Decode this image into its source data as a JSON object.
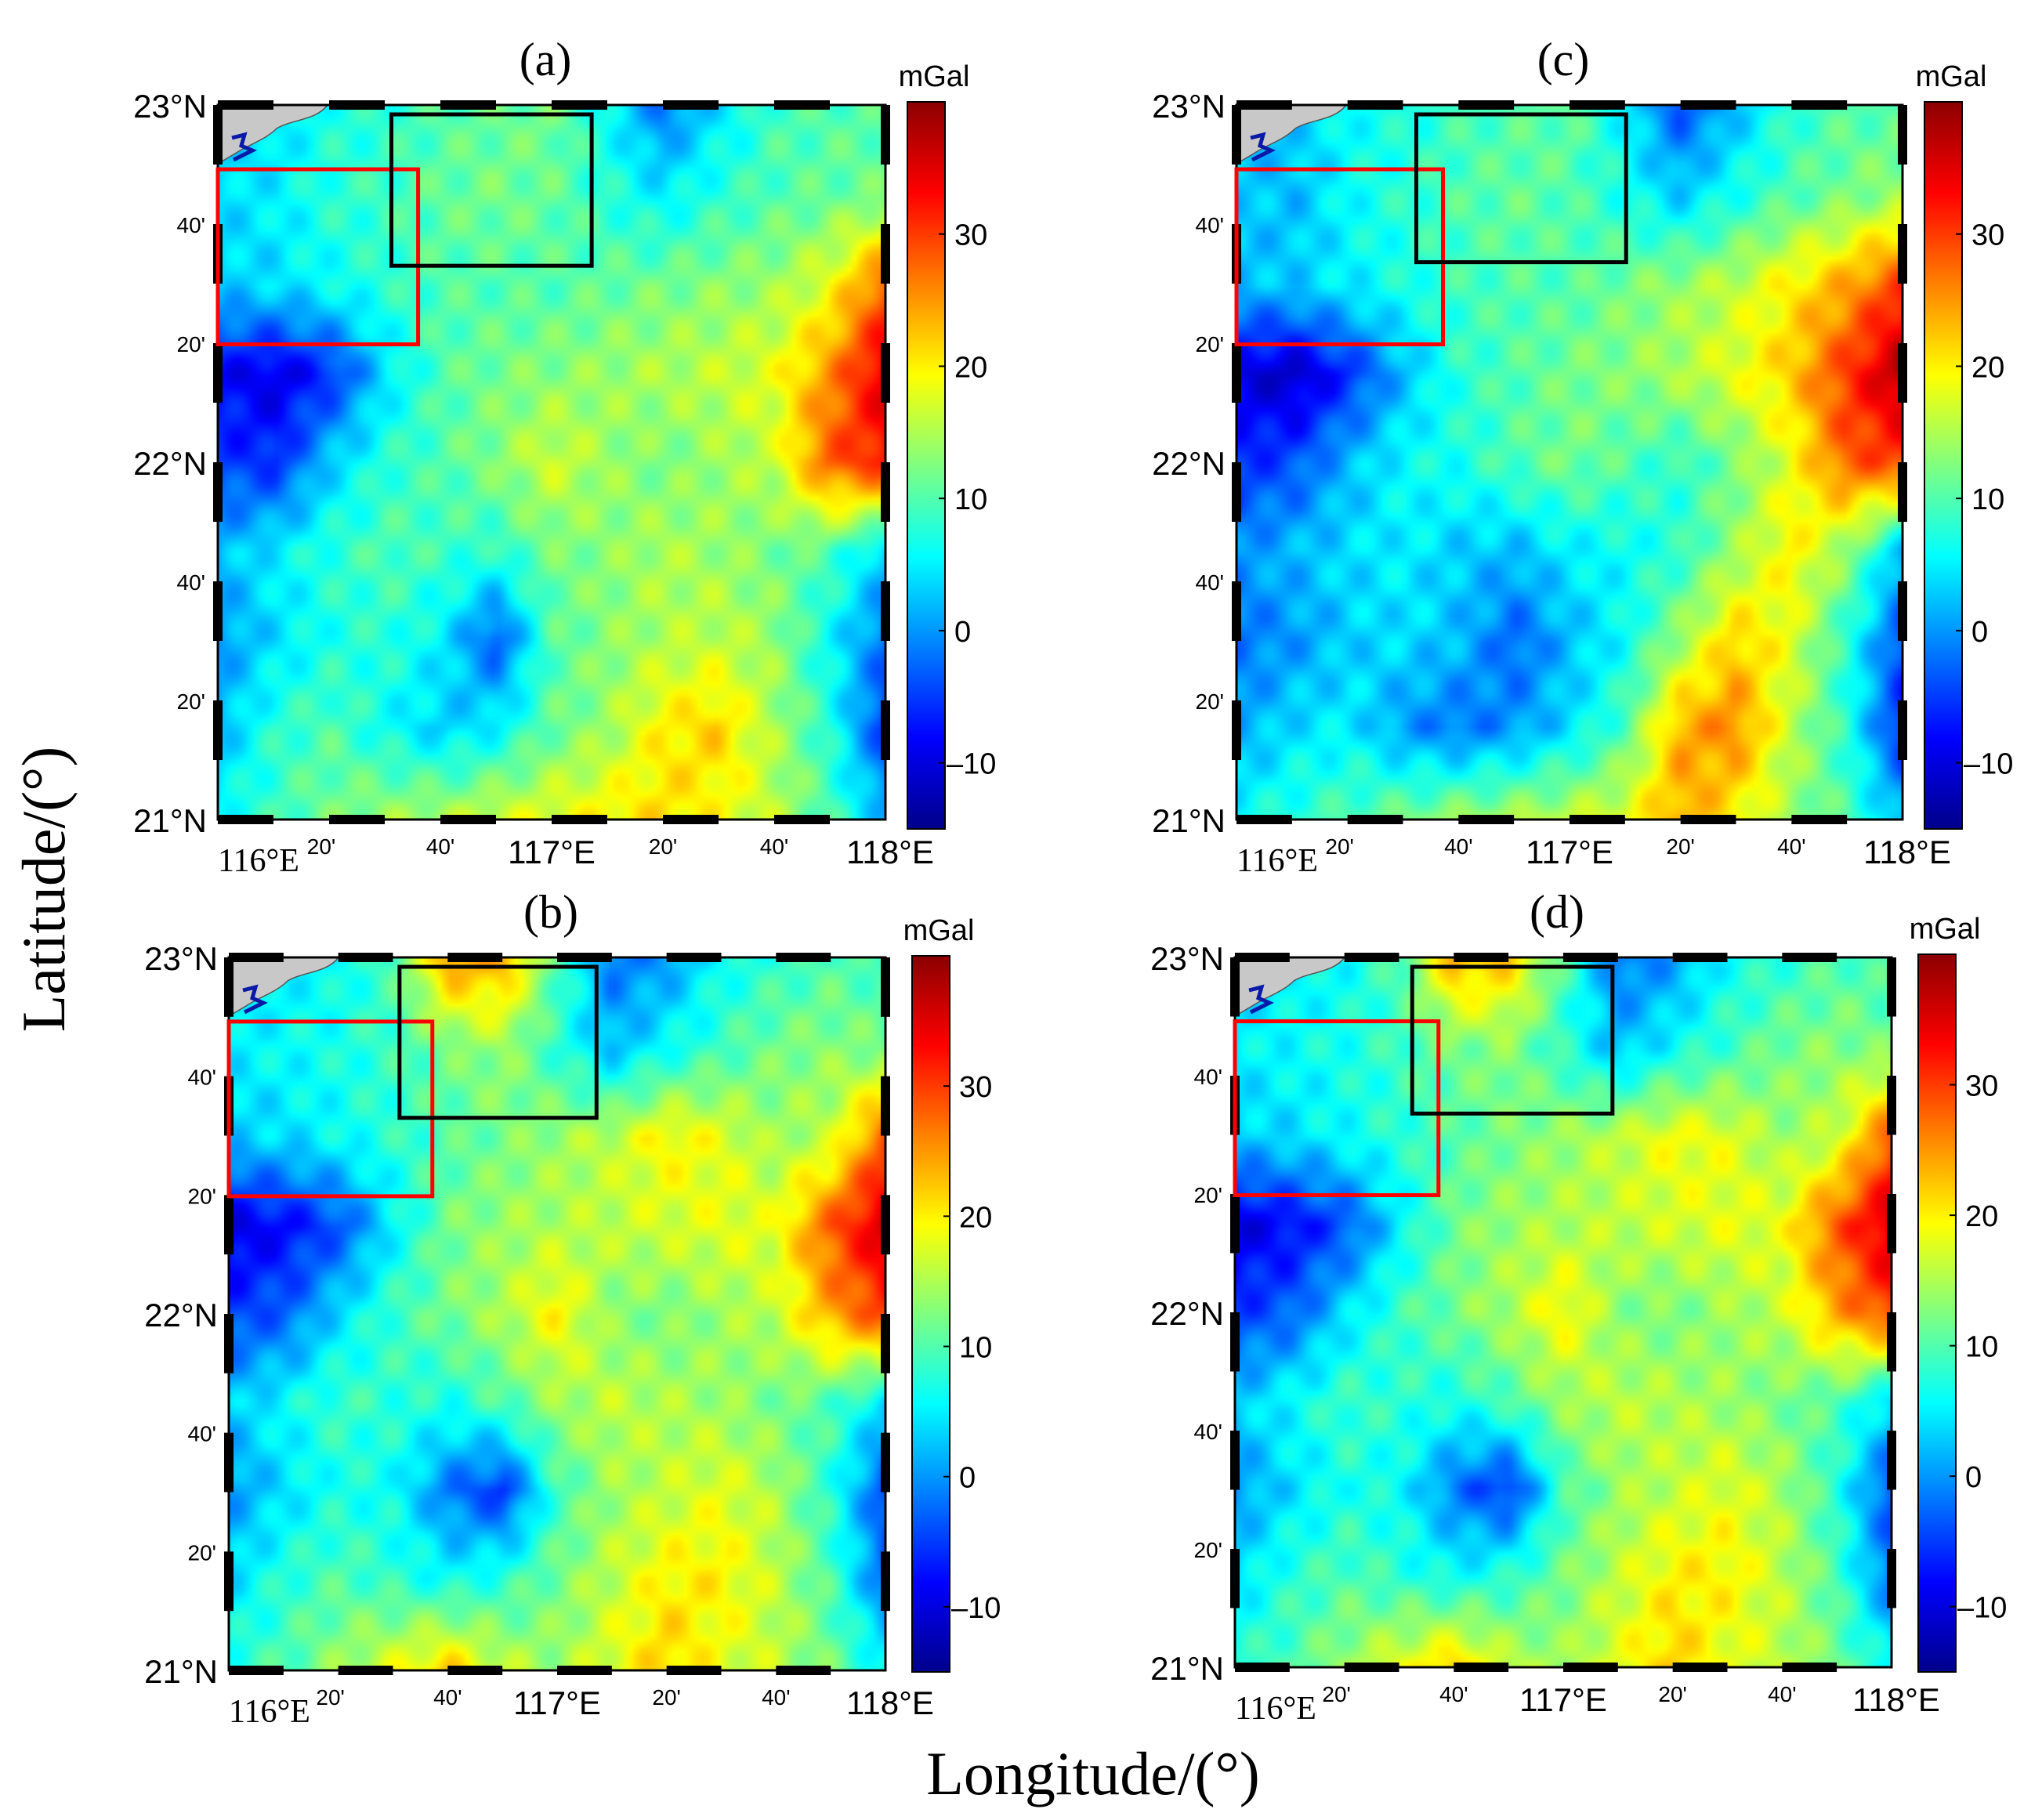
{
  "figure": {
    "xlabel": "Longitude/(°)",
    "ylabel": "Latitude/(°)"
  },
  "shared": {
    "lat_major_labels": [
      "23°N",
      "22°N",
      "21°N"
    ],
    "lat_minor_labels": [
      "40'",
      "20'",
      "40'",
      "20'"
    ],
    "lon_major_labels": [
      "116°E",
      "117°E",
      "118°E"
    ],
    "lon_minor_labels": [
      "20'",
      "40'",
      "20'",
      "40'"
    ],
    "colorbar_unit": "mGal",
    "colorbar_ticks": [
      "30",
      "20",
      "10",
      "0",
      "–10"
    ],
    "colorbar_range": [
      -15,
      40
    ]
  },
  "colors": {
    "colormap": [
      "#00008b",
      "#0000ff",
      "#0080ff",
      "#00ffff",
      "#80ff80",
      "#ffff00",
      "#ff8000",
      "#ff0000",
      "#8b0000"
    ],
    "red_box": "#ff0000",
    "black_box": "#000000",
    "land": "#c8c8c8",
    "river": "#0a1aa8"
  },
  "chart_data": [
    {
      "type": "heatmap",
      "panel_label": "(a)",
      "unit": "mGal",
      "lon_range": [
        116.0,
        118.0
      ],
      "lat_range": [
        21.0,
        23.0
      ],
      "value_range": [
        -15,
        40
      ],
      "red_box": {
        "lon": [
          116.0,
          116.6
        ],
        "lat": [
          22.33,
          22.82
        ]
      },
      "black_box": {
        "lon": [
          116.52,
          117.12
        ],
        "lat": [
          22.55,
          23.0
        ]
      },
      "field": [
        [
          2,
          4,
          7,
          8,
          10,
          11,
          12,
          6,
          -2,
          4,
          9,
          10,
          10
        ],
        [
          4,
          5,
          8,
          9,
          11,
          12,
          11,
          8,
          5,
          8,
          10,
          11,
          12
        ],
        [
          3,
          4,
          6,
          8,
          10,
          10,
          10,
          11,
          12,
          13,
          14,
          18,
          28
        ],
        [
          -8,
          -10,
          -6,
          4,
          10,
          12,
          13,
          14,
          15,
          16,
          18,
          25,
          35
        ],
        [
          -5,
          -6,
          3,
          8,
          10,
          13,
          17,
          14,
          12,
          14,
          16,
          28,
          32
        ],
        [
          2,
          5,
          8,
          10,
          9,
          8,
          12,
          13,
          15,
          14,
          12,
          10,
          3
        ],
        [
          0,
          4,
          7,
          8,
          5,
          -4,
          10,
          13,
          15,
          16,
          14,
          6,
          -2
        ],
        [
          2,
          8,
          10,
          6,
          3,
          5,
          11,
          14,
          20,
          22,
          15,
          8,
          -5
        ],
        [
          6,
          9,
          12,
          14,
          15,
          17,
          18,
          20,
          21,
          19,
          16,
          10,
          2
        ]
      ]
    },
    {
      "type": "heatmap",
      "panel_label": "(b)",
      "unit": "mGal",
      "lon_range": [
        116.0,
        118.0
      ],
      "lat_range": [
        21.0,
        23.0
      ],
      "value_range": [
        -15,
        40
      ],
      "red_box": {
        "lon": [
          116.0,
          116.62
        ],
        "lat": [
          22.33,
          22.82
        ]
      },
      "black_box": {
        "lon": [
          116.52,
          117.12
        ],
        "lat": [
          22.55,
          23.0
        ]
      },
      "field": [
        [
          3,
          5,
          6,
          10,
          25,
          24,
          10,
          -2,
          0,
          6,
          8,
          10,
          9
        ],
        [
          5,
          6,
          7,
          9,
          12,
          14,
          8,
          2,
          6,
          9,
          12,
          13,
          12
        ],
        [
          3,
          4,
          6,
          8,
          10,
          12,
          14,
          16,
          20,
          18,
          14,
          16,
          28
        ],
        [
          -10,
          -8,
          -4,
          5,
          12,
          14,
          15,
          16,
          17,
          18,
          18,
          28,
          36
        ],
        [
          -5,
          -3,
          4,
          9,
          12,
          15,
          20,
          13,
          12,
          14,
          16,
          24,
          30
        ],
        [
          3,
          6,
          9,
          8,
          7,
          10,
          14,
          16,
          15,
          14,
          12,
          10,
          4
        ],
        [
          0,
          4,
          7,
          6,
          -2,
          -6,
          9,
          14,
          16,
          18,
          15,
          8,
          -4
        ],
        [
          4,
          8,
          10,
          8,
          6,
          8,
          12,
          16,
          20,
          20,
          16,
          10,
          -2
        ],
        [
          8,
          10,
          14,
          18,
          22,
          16,
          14,
          18,
          22,
          18,
          16,
          12,
          6
        ]
      ]
    },
    {
      "type": "heatmap",
      "panel_label": "(c)",
      "unit": "mGal",
      "lon_range": [
        116.0,
        118.0
      ],
      "lat_range": [
        21.0,
        23.0
      ],
      "value_range": [
        -15,
        40
      ],
      "red_box": {
        "lon": [
          116.0,
          116.62
        ],
        "lat": [
          22.33,
          22.82
        ]
      },
      "black_box": {
        "lon": [
          116.54,
          117.17
        ],
        "lat": [
          22.56,
          23.0
        ]
      },
      "field": [
        [
          1,
          3,
          6,
          7,
          9,
          10,
          11,
          5,
          -4,
          2,
          8,
          10,
          10
        ],
        [
          3,
          2,
          6,
          8,
          10,
          11,
          10,
          7,
          3,
          7,
          10,
          12,
          14
        ],
        [
          2,
          3,
          5,
          7,
          9,
          10,
          10,
          12,
          14,
          16,
          20,
          24,
          30
        ],
        [
          -10,
          -12,
          -6,
          2,
          8,
          10,
          12,
          13,
          15,
          18,
          22,
          30,
          38
        ],
        [
          -6,
          -4,
          2,
          6,
          7,
          10,
          12,
          10,
          8,
          12,
          18,
          28,
          30
        ],
        [
          0,
          2,
          4,
          5,
          3,
          2,
          5,
          6,
          8,
          14,
          20,
          14,
          2
        ],
        [
          -2,
          0,
          3,
          4,
          2,
          -3,
          2,
          6,
          14,
          22,
          18,
          8,
          -4
        ],
        [
          1,
          4,
          5,
          0,
          -2,
          0,
          4,
          10,
          24,
          26,
          16,
          8,
          -6
        ],
        [
          6,
          8,
          10,
          12,
          14,
          15,
          16,
          18,
          24,
          20,
          14,
          10,
          2
        ]
      ]
    },
    {
      "type": "heatmap",
      "panel_label": "(d)",
      "unit": "mGal",
      "lon_range": [
        116.0,
        118.0
      ],
      "lat_range": [
        21.0,
        23.0
      ],
      "value_range": [
        -15,
        40
      ],
      "red_box": {
        "lon": [
          116.0,
          116.62
        ],
        "lat": [
          22.33,
          22.82
        ]
      },
      "black_box": {
        "lon": [
          116.54,
          117.15
        ],
        "lat": [
          22.56,
          23.0
        ]
      },
      "field": [
        [
          3,
          5,
          6,
          10,
          24,
          22,
          10,
          -2,
          0,
          6,
          8,
          10,
          9
        ],
        [
          5,
          6,
          7,
          9,
          12,
          13,
          8,
          2,
          6,
          9,
          12,
          13,
          12
        ],
        [
          3,
          4,
          6,
          8,
          10,
          12,
          14,
          16,
          19,
          18,
          14,
          16,
          28
        ],
        [
          -10,
          -8,
          -4,
          5,
          12,
          14,
          15,
          16,
          17,
          18,
          18,
          28,
          36
        ],
        [
          -5,
          -3,
          4,
          9,
          12,
          15,
          20,
          13,
          12,
          14,
          16,
          24,
          30
        ],
        [
          3,
          6,
          9,
          8,
          7,
          10,
          14,
          16,
          15,
          14,
          12,
          10,
          4
        ],
        [
          0,
          4,
          7,
          6,
          -2,
          -6,
          9,
          14,
          16,
          18,
          15,
          8,
          -4
        ],
        [
          4,
          8,
          10,
          8,
          6,
          8,
          12,
          16,
          20,
          20,
          16,
          10,
          -2
        ],
        [
          8,
          10,
          14,
          18,
          22,
          16,
          14,
          18,
          22,
          18,
          16,
          12,
          6
        ]
      ]
    }
  ]
}
